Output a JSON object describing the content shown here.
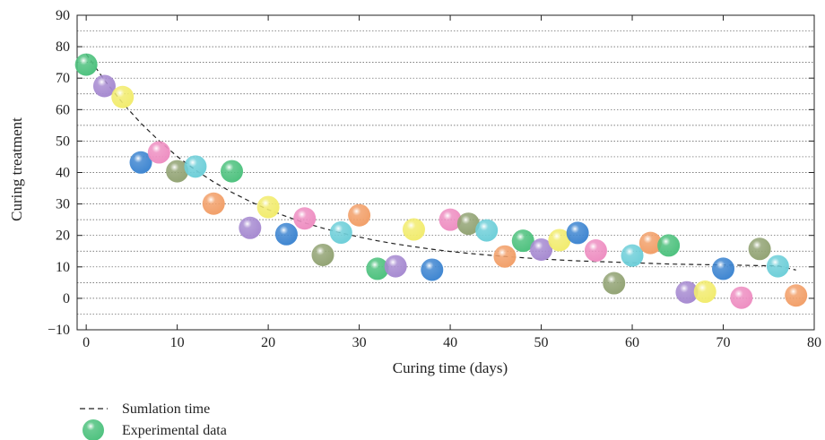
{
  "chart_data": {
    "type": "scatter",
    "title": "",
    "xlabel": "Curing time (days)",
    "ylabel": "Curing treatment",
    "xlim": [
      -1,
      80
    ],
    "ylim": [
      -10,
      90
    ],
    "x_ticks": [
      0,
      10,
      20,
      30,
      40,
      50,
      60,
      70,
      80
    ],
    "y_ticks": [
      -10,
      0,
      10,
      20,
      30,
      40,
      50,
      60,
      70,
      80,
      90
    ],
    "x_tick_labels": [
      "0",
      "10",
      "20",
      "30",
      "40",
      "50",
      "60",
      "70",
      "80"
    ],
    "y_tick_labels": [
      "−10",
      "0",
      "10",
      "20",
      "30",
      "40",
      "50",
      "60",
      "70",
      "80",
      "90"
    ],
    "grid": "horizontal dotted at every 5 units",
    "legend_position": "bottom-left, below the plot",
    "series": [
      {
        "name": "Sumlation time",
        "style": "dashed-line",
        "color": "#222222",
        "x": [
          0,
          2,
          4,
          6,
          8,
          10,
          12,
          14,
          16,
          18,
          20,
          22,
          24,
          26,
          28,
          30,
          32,
          34,
          36,
          38,
          40,
          42,
          44,
          46,
          48,
          50,
          52,
          54,
          56,
          58,
          60,
          62,
          64,
          66,
          68,
          70,
          72,
          74,
          76,
          78
        ],
        "y": [
          77.7,
          69.4,
          62.1,
          55.7,
          50.1,
          45.1,
          40.8,
          37.0,
          33.7,
          30.8,
          28.2,
          26.0,
          24.0,
          22.3,
          20.8,
          19.5,
          18.3,
          17.3,
          16.4,
          15.6,
          14.9,
          14.3,
          13.8,
          13.3,
          12.9,
          12.5,
          12.2,
          11.9,
          11.7,
          11.5,
          11.3,
          11.1,
          10.9,
          10.8,
          10.7,
          10.6,
          10.5,
          10.4,
          10.3,
          9.0
        ]
      },
      {
        "name": "Experimental data",
        "style": "sphere-markers",
        "x": [
          0,
          2,
          4,
          6,
          8,
          10,
          12,
          14,
          16,
          18,
          20,
          22,
          24,
          26,
          28,
          30,
          32,
          34,
          36,
          38,
          40,
          42,
          44,
          46,
          48,
          50,
          52,
          54,
          56,
          58,
          60,
          62,
          64,
          66,
          68,
          70,
          72,
          74,
          76,
          78
        ],
        "y": [
          74.3,
          67.5,
          64.0,
          43.2,
          46.4,
          40.4,
          41.9,
          30.1,
          40.4,
          22.4,
          29.0,
          20.4,
          25.4,
          13.8,
          20.9,
          26.4,
          9.4,
          10.2,
          21.9,
          9.1,
          25.0,
          23.7,
          21.6,
          13.3,
          18.3,
          15.5,
          18.5,
          20.8,
          15.2,
          4.8,
          13.6,
          17.6,
          16.8,
          1.9,
          2.1,
          9.4,
          0.2,
          15.7,
          10.2,
          0.9
        ],
        "colors": [
          "#4fc27f",
          "#a78bd1",
          "#f2ec6f",
          "#3f86d1",
          "#ee8fc2",
          "#93a475",
          "#6fcfd9",
          "#f2a06a",
          "#4fc27f",
          "#a78bd1",
          "#f2ec6f",
          "#3f86d1",
          "#ee8fc2",
          "#93a475",
          "#6fcfd9",
          "#f2a06a",
          "#4fc27f",
          "#a78bd1",
          "#f2ec6f",
          "#3f86d1",
          "#ee8fc2",
          "#93a475",
          "#6fcfd9",
          "#f2a06a",
          "#4fc27f",
          "#a78bd1",
          "#f2ec6f",
          "#3f86d1",
          "#ee8fc2",
          "#93a475",
          "#6fcfd9",
          "#f2a06a",
          "#4fc27f",
          "#a78bd1",
          "#f2ec6f",
          "#3f86d1",
          "#ee8fc2",
          "#93a475",
          "#6fcfd9",
          "#f2a06a"
        ]
      }
    ]
  },
  "legend": {
    "line_label": "Sumlation time",
    "marker_label": "Experimental data",
    "marker_color": "#4fc27f"
  }
}
